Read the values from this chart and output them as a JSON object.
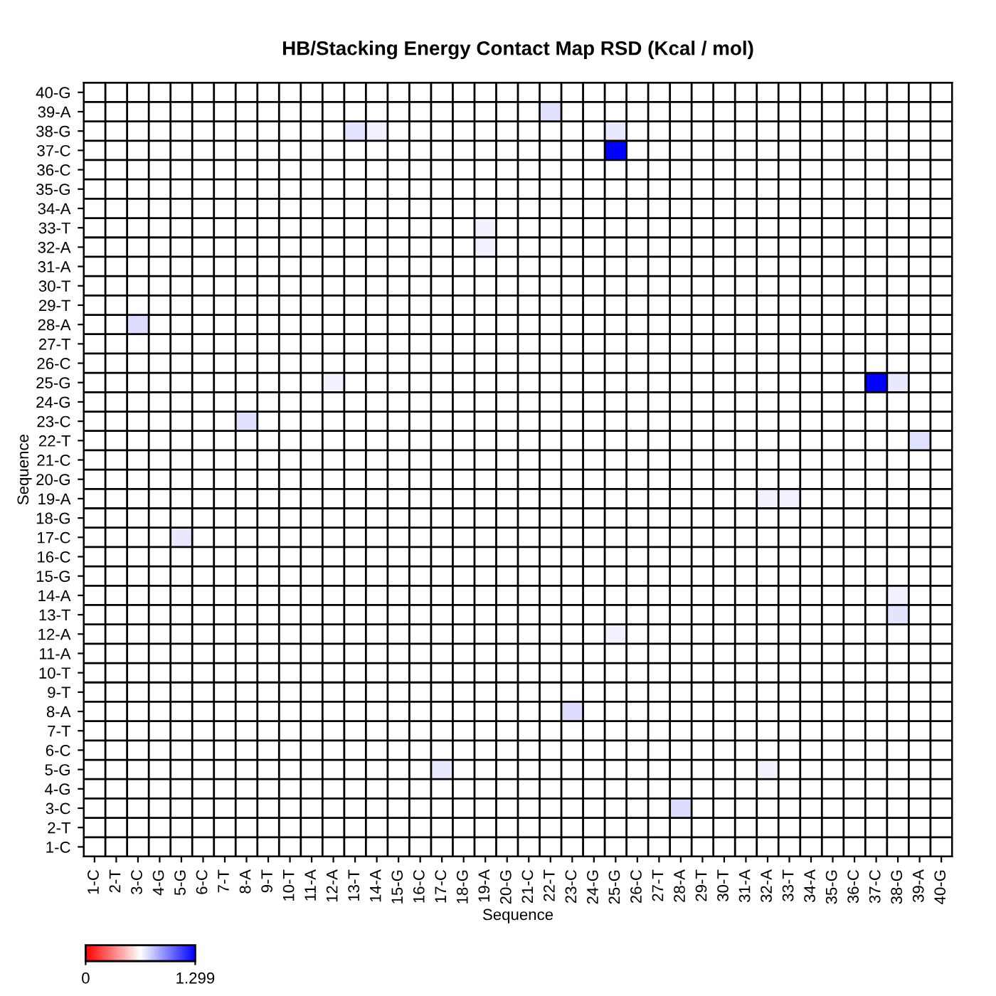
{
  "chart_data": {
    "type": "heatmap",
    "title": "HB/Stacking Energy Contact Map RSD (Kcal / mol)",
    "xlabel": "Sequence",
    "ylabel": "Sequence",
    "categories": [
      "1-C",
      "2-T",
      "3-C",
      "4-G",
      "5-G",
      "6-C",
      "7-T",
      "8-A",
      "9-T",
      "10-T",
      "11-A",
      "12-A",
      "13-T",
      "14-A",
      "15-G",
      "16-C",
      "17-C",
      "18-G",
      "19-A",
      "20-G",
      "21-C",
      "22-T",
      "23-C",
      "24-G",
      "25-G",
      "26-C",
      "27-T",
      "28-A",
      "29-T",
      "30-T",
      "31-A",
      "32-A",
      "33-T",
      "34-A",
      "35-G",
      "36-C",
      "37-C",
      "38-G",
      "39-A",
      "40-G"
    ],
    "y_categories": [
      "40-G",
      "39-A",
      "38-G",
      "37-C",
      "36-C",
      "35-G",
      "34-A",
      "33-T",
      "32-A",
      "31-A",
      "30-T",
      "29-T",
      "28-A",
      "27-T",
      "26-C",
      "25-G",
      "24-G",
      "23-C",
      "22-T",
      "21-C",
      "20-G",
      "19-A",
      "18-G",
      "17-C",
      "16-C",
      "15-G",
      "14-A",
      "13-T",
      "12-A",
      "11-A",
      "10-T",
      "9-T",
      "8-A",
      "7-T",
      "6-C",
      "5-G",
      "4-G",
      "3-C",
      "2-T",
      "1-C"
    ],
    "cells": [
      [
        null,
        null,
        null,
        null,
        null,
        null,
        null,
        null,
        null,
        null,
        null,
        null,
        null,
        null,
        null,
        null,
        null,
        null,
        null,
        null,
        null,
        null,
        null,
        null,
        null,
        null,
        null,
        null,
        null,
        null,
        null,
        null,
        null,
        null,
        null,
        null,
        null,
        null,
        null,
        null
      ],
      [
        null,
        null,
        null,
        null,
        null,
        null,
        null,
        null,
        null,
        null,
        null,
        null,
        null,
        null,
        null,
        null,
        null,
        null,
        null,
        null,
        null,
        0.73,
        null,
        null,
        null,
        null,
        null,
        null,
        null,
        null,
        null,
        null,
        null,
        null,
        null,
        null,
        null,
        null,
        null,
        null
      ],
      [
        null,
        null,
        null,
        null,
        null,
        null,
        null,
        null,
        null,
        null,
        null,
        null,
        0.72,
        0.69,
        null,
        null,
        null,
        null,
        null,
        null,
        null,
        null,
        null,
        null,
        0.71,
        null,
        null,
        null,
        null,
        null,
        null,
        null,
        null,
        null,
        null,
        null,
        null,
        null,
        null,
        null
      ],
      [
        null,
        null,
        null,
        null,
        null,
        null,
        null,
        null,
        null,
        null,
        null,
        null,
        null,
        null,
        null,
        null,
        null,
        null,
        null,
        null,
        null,
        null,
        null,
        null,
        1.299,
        null,
        null,
        null,
        null,
        null,
        null,
        null,
        null,
        null,
        null,
        null,
        null,
        null,
        null,
        null
      ],
      [
        null,
        null,
        null,
        null,
        null,
        null,
        null,
        null,
        null,
        null,
        null,
        null,
        null,
        null,
        null,
        null,
        null,
        null,
        null,
        null,
        null,
        null,
        null,
        null,
        null,
        null,
        null,
        null,
        null,
        null,
        null,
        null,
        null,
        null,
        null,
        null,
        null,
        null,
        null,
        null
      ],
      [
        null,
        null,
        null,
        null,
        null,
        null,
        null,
        null,
        null,
        null,
        null,
        null,
        null,
        null,
        null,
        null,
        null,
        null,
        null,
        null,
        null,
        null,
        null,
        null,
        null,
        null,
        null,
        null,
        null,
        null,
        null,
        null,
        null,
        null,
        null,
        null,
        null,
        null,
        null,
        null
      ],
      [
        null,
        null,
        null,
        null,
        null,
        null,
        null,
        null,
        null,
        null,
        null,
        null,
        null,
        null,
        null,
        null,
        null,
        null,
        null,
        null,
        null,
        null,
        null,
        null,
        null,
        null,
        null,
        null,
        null,
        null,
        null,
        null,
        null,
        null,
        null,
        null,
        null,
        null,
        null,
        null
      ],
      [
        null,
        null,
        null,
        null,
        null,
        null,
        null,
        null,
        null,
        null,
        null,
        null,
        null,
        null,
        null,
        null,
        null,
        null,
        0.69,
        null,
        null,
        null,
        null,
        null,
        null,
        null,
        null,
        null,
        null,
        null,
        null,
        null,
        null,
        null,
        null,
        null,
        null,
        null,
        null,
        null
      ],
      [
        null,
        null,
        null,
        null,
        null,
        null,
        null,
        null,
        null,
        null,
        null,
        null,
        null,
        null,
        null,
        null,
        null,
        null,
        0.69,
        null,
        null,
        null,
        null,
        null,
        null,
        null,
        null,
        null,
        null,
        null,
        null,
        null,
        null,
        null,
        null,
        null,
        null,
        null,
        null,
        null
      ],
      [
        null,
        null,
        null,
        null,
        null,
        null,
        null,
        null,
        null,
        null,
        null,
        null,
        null,
        null,
        null,
        null,
        null,
        null,
        null,
        null,
        null,
        null,
        null,
        null,
        null,
        null,
        null,
        null,
        null,
        null,
        null,
        null,
        null,
        null,
        null,
        null,
        null,
        null,
        null,
        null
      ],
      [
        null,
        null,
        null,
        null,
        null,
        null,
        null,
        null,
        null,
        null,
        null,
        null,
        null,
        null,
        null,
        null,
        null,
        null,
        null,
        null,
        null,
        null,
        null,
        null,
        null,
        null,
        null,
        null,
        null,
        null,
        null,
        null,
        null,
        null,
        null,
        null,
        null,
        null,
        null,
        null
      ],
      [
        null,
        null,
        null,
        null,
        null,
        null,
        null,
        null,
        null,
        null,
        null,
        null,
        null,
        null,
        null,
        null,
        null,
        null,
        null,
        null,
        null,
        null,
        null,
        null,
        null,
        null,
        null,
        null,
        null,
        null,
        null,
        null,
        null,
        null,
        null,
        null,
        null,
        null,
        null,
        null
      ],
      [
        null,
        null,
        0.74,
        null,
        null,
        null,
        null,
        null,
        null,
        null,
        null,
        null,
        null,
        null,
        null,
        null,
        null,
        null,
        null,
        null,
        null,
        null,
        null,
        null,
        null,
        null,
        null,
        null,
        null,
        null,
        null,
        null,
        null,
        null,
        null,
        null,
        null,
        null,
        null,
        null
      ],
      [
        null,
        null,
        null,
        null,
        null,
        null,
        null,
        null,
        null,
        null,
        null,
        null,
        null,
        null,
        null,
        null,
        null,
        null,
        null,
        null,
        null,
        null,
        null,
        null,
        null,
        null,
        null,
        null,
        null,
        null,
        null,
        null,
        null,
        null,
        null,
        null,
        null,
        null,
        null,
        null
      ],
      [
        null,
        null,
        null,
        null,
        null,
        null,
        null,
        null,
        null,
        null,
        null,
        null,
        null,
        null,
        null,
        null,
        null,
        null,
        null,
        null,
        null,
        null,
        null,
        null,
        null,
        null,
        null,
        null,
        null,
        null,
        null,
        null,
        null,
        null,
        null,
        null,
        null,
        null,
        null,
        null
      ],
      [
        null,
        null,
        null,
        null,
        null,
        null,
        null,
        null,
        null,
        null,
        null,
        0.68,
        null,
        null,
        null,
        null,
        null,
        null,
        null,
        null,
        null,
        null,
        null,
        null,
        null,
        null,
        null,
        null,
        null,
        null,
        null,
        null,
        null,
        null,
        null,
        null,
        1.299,
        0.71,
        null,
        null
      ],
      [
        null,
        null,
        null,
        null,
        null,
        null,
        null,
        null,
        null,
        null,
        null,
        null,
        null,
        null,
        null,
        null,
        null,
        null,
        null,
        null,
        null,
        null,
        null,
        null,
        null,
        null,
        null,
        null,
        null,
        null,
        null,
        null,
        null,
        null,
        null,
        null,
        null,
        null,
        null,
        null
      ],
      [
        null,
        null,
        null,
        null,
        null,
        null,
        null,
        0.73,
        null,
        null,
        null,
        null,
        null,
        null,
        null,
        null,
        null,
        null,
        null,
        null,
        null,
        null,
        null,
        null,
        null,
        null,
        null,
        null,
        null,
        null,
        null,
        null,
        null,
        null,
        null,
        null,
        null,
        null,
        null,
        null
      ],
      [
        null,
        null,
        null,
        null,
        null,
        null,
        null,
        null,
        null,
        null,
        null,
        null,
        null,
        null,
        null,
        null,
        null,
        null,
        null,
        null,
        null,
        null,
        null,
        null,
        null,
        null,
        null,
        null,
        null,
        null,
        null,
        null,
        null,
        null,
        null,
        null,
        null,
        null,
        0.73,
        null
      ],
      [
        null,
        null,
        null,
        null,
        null,
        null,
        null,
        null,
        null,
        null,
        null,
        null,
        null,
        null,
        null,
        null,
        null,
        null,
        null,
        null,
        null,
        null,
        null,
        null,
        null,
        null,
        null,
        null,
        null,
        null,
        null,
        null,
        null,
        null,
        null,
        null,
        null,
        null,
        null,
        null
      ],
      [
        null,
        null,
        null,
        null,
        null,
        null,
        null,
        null,
        null,
        null,
        null,
        null,
        null,
        null,
        null,
        null,
        null,
        null,
        null,
        null,
        null,
        null,
        null,
        null,
        null,
        null,
        null,
        null,
        null,
        null,
        null,
        null,
        null,
        null,
        null,
        null,
        null,
        null,
        null,
        null
      ],
      [
        null,
        null,
        null,
        null,
        null,
        null,
        null,
        null,
        null,
        null,
        null,
        null,
        null,
        null,
        null,
        null,
        null,
        null,
        null,
        null,
        null,
        null,
        null,
        null,
        null,
        null,
        null,
        null,
        null,
        null,
        null,
        0.68,
        0.69,
        null,
        null,
        null,
        null,
        null,
        null,
        null
      ],
      [
        null,
        null,
        null,
        null,
        null,
        null,
        null,
        null,
        null,
        null,
        null,
        null,
        null,
        null,
        null,
        null,
        null,
        null,
        null,
        null,
        null,
        null,
        null,
        null,
        null,
        null,
        null,
        null,
        null,
        null,
        null,
        null,
        null,
        null,
        null,
        null,
        null,
        null,
        null,
        null
      ],
      [
        null,
        null,
        null,
        null,
        0.71,
        null,
        null,
        null,
        null,
        null,
        null,
        null,
        null,
        null,
        null,
        null,
        null,
        null,
        null,
        null,
        null,
        null,
        null,
        null,
        null,
        null,
        null,
        null,
        null,
        null,
        null,
        null,
        null,
        null,
        null,
        null,
        null,
        null,
        null,
        null
      ],
      [
        null,
        null,
        null,
        null,
        null,
        null,
        null,
        null,
        null,
        null,
        null,
        null,
        null,
        null,
        null,
        null,
        null,
        null,
        null,
        null,
        null,
        null,
        null,
        null,
        null,
        null,
        null,
        null,
        null,
        null,
        null,
        null,
        null,
        null,
        null,
        null,
        null,
        null,
        null,
        null
      ],
      [
        null,
        null,
        null,
        null,
        null,
        null,
        null,
        null,
        null,
        null,
        null,
        null,
        null,
        null,
        null,
        null,
        null,
        null,
        null,
        null,
        null,
        null,
        null,
        null,
        null,
        null,
        null,
        null,
        null,
        null,
        null,
        null,
        null,
        null,
        null,
        null,
        null,
        null,
        null,
        null
      ],
      [
        null,
        null,
        null,
        null,
        null,
        null,
        null,
        null,
        null,
        null,
        null,
        null,
        null,
        null,
        null,
        null,
        null,
        null,
        null,
        null,
        null,
        null,
        null,
        null,
        null,
        null,
        null,
        null,
        null,
        null,
        null,
        null,
        null,
        null,
        null,
        null,
        null,
        0.69,
        null,
        null
      ],
      [
        null,
        null,
        null,
        null,
        null,
        null,
        null,
        null,
        null,
        null,
        null,
        null,
        null,
        null,
        null,
        null,
        null,
        null,
        null,
        null,
        null,
        null,
        null,
        null,
        null,
        null,
        null,
        null,
        null,
        null,
        null,
        null,
        null,
        null,
        null,
        null,
        null,
        0.72,
        null,
        null
      ],
      [
        null,
        null,
        null,
        null,
        null,
        null,
        null,
        null,
        null,
        null,
        null,
        null,
        null,
        null,
        null,
        null,
        null,
        null,
        null,
        null,
        null,
        null,
        null,
        null,
        0.68,
        null,
        null,
        null,
        null,
        null,
        null,
        null,
        null,
        null,
        null,
        null,
        null,
        null,
        null,
        null
      ],
      [
        null,
        null,
        null,
        null,
        null,
        null,
        null,
        null,
        null,
        null,
        null,
        null,
        null,
        null,
        null,
        null,
        null,
        null,
        null,
        null,
        null,
        null,
        null,
        null,
        null,
        null,
        null,
        null,
        null,
        null,
        null,
        null,
        null,
        null,
        null,
        null,
        null,
        null,
        null,
        null
      ],
      [
        null,
        null,
        null,
        null,
        null,
        null,
        null,
        null,
        null,
        null,
        null,
        null,
        null,
        null,
        null,
        null,
        null,
        null,
        null,
        null,
        null,
        null,
        null,
        null,
        null,
        null,
        null,
        null,
        null,
        null,
        null,
        null,
        null,
        null,
        null,
        null,
        null,
        null,
        null,
        null
      ],
      [
        null,
        null,
        null,
        null,
        null,
        null,
        null,
        null,
        null,
        null,
        null,
        null,
        null,
        null,
        null,
        null,
        null,
        null,
        null,
        null,
        null,
        null,
        null,
        null,
        null,
        null,
        null,
        null,
        null,
        null,
        null,
        null,
        null,
        null,
        null,
        null,
        null,
        null,
        null,
        null
      ],
      [
        null,
        null,
        null,
        null,
        null,
        null,
        null,
        null,
        null,
        null,
        null,
        null,
        null,
        null,
        null,
        null,
        null,
        null,
        null,
        null,
        null,
        null,
        0.74,
        null,
        null,
        null,
        null,
        null,
        null,
        null,
        null,
        null,
        null,
        null,
        null,
        null,
        null,
        null,
        null,
        null
      ],
      [
        null,
        null,
        null,
        null,
        null,
        null,
        null,
        null,
        null,
        null,
        null,
        null,
        null,
        null,
        null,
        null,
        null,
        null,
        null,
        null,
        null,
        null,
        null,
        null,
        null,
        null,
        null,
        null,
        null,
        null,
        null,
        null,
        null,
        null,
        null,
        null,
        null,
        null,
        null,
        null
      ],
      [
        null,
        null,
        null,
        null,
        null,
        null,
        null,
        null,
        null,
        null,
        null,
        null,
        null,
        null,
        null,
        null,
        null,
        null,
        null,
        null,
        null,
        null,
        null,
        null,
        null,
        null,
        null,
        null,
        null,
        null,
        null,
        null,
        null,
        null,
        null,
        null,
        null,
        null,
        null,
        null
      ],
      [
        null,
        null,
        null,
        null,
        null,
        null,
        null,
        null,
        null,
        null,
        null,
        null,
        null,
        null,
        null,
        null,
        0.71,
        null,
        null,
        null,
        null,
        null,
        null,
        null,
        null,
        null,
        null,
        null,
        null,
        null,
        null,
        0.68,
        null,
        null,
        null,
        null,
        null,
        null,
        null,
        null
      ],
      [
        null,
        null,
        null,
        null,
        null,
        null,
        null,
        null,
        null,
        null,
        null,
        null,
        null,
        null,
        null,
        null,
        null,
        null,
        null,
        null,
        null,
        null,
        null,
        null,
        null,
        null,
        null,
        null,
        null,
        null,
        null,
        null,
        null,
        null,
        null,
        null,
        null,
        null,
        null,
        null
      ],
      [
        null,
        null,
        null,
        null,
        null,
        null,
        null,
        null,
        null,
        null,
        null,
        null,
        null,
        null,
        null,
        null,
        null,
        null,
        null,
        null,
        null,
        null,
        null,
        null,
        null,
        null,
        null,
        0.74,
        null,
        null,
        null,
        null,
        null,
        null,
        null,
        null,
        null,
        null,
        null,
        null
      ],
      [
        null,
        null,
        null,
        null,
        null,
        null,
        null,
        null,
        null,
        null,
        null,
        null,
        null,
        null,
        null,
        null,
        null,
        null,
        null,
        null,
        null,
        null,
        null,
        null,
        null,
        null,
        null,
        null,
        null,
        null,
        null,
        null,
        null,
        null,
        null,
        null,
        null,
        null,
        null,
        null
      ],
      [
        null,
        null,
        null,
        null,
        null,
        null,
        null,
        null,
        null,
        null,
        null,
        null,
        null,
        null,
        null,
        null,
        null,
        null,
        null,
        null,
        null,
        null,
        null,
        null,
        null,
        null,
        null,
        null,
        null,
        null,
        null,
        null,
        null,
        null,
        null,
        null,
        null,
        null,
        null,
        null
      ]
    ],
    "clim": [
      0,
      1.299
    ],
    "cticks": [
      0,
      1.299
    ],
    "grid": true
  }
}
